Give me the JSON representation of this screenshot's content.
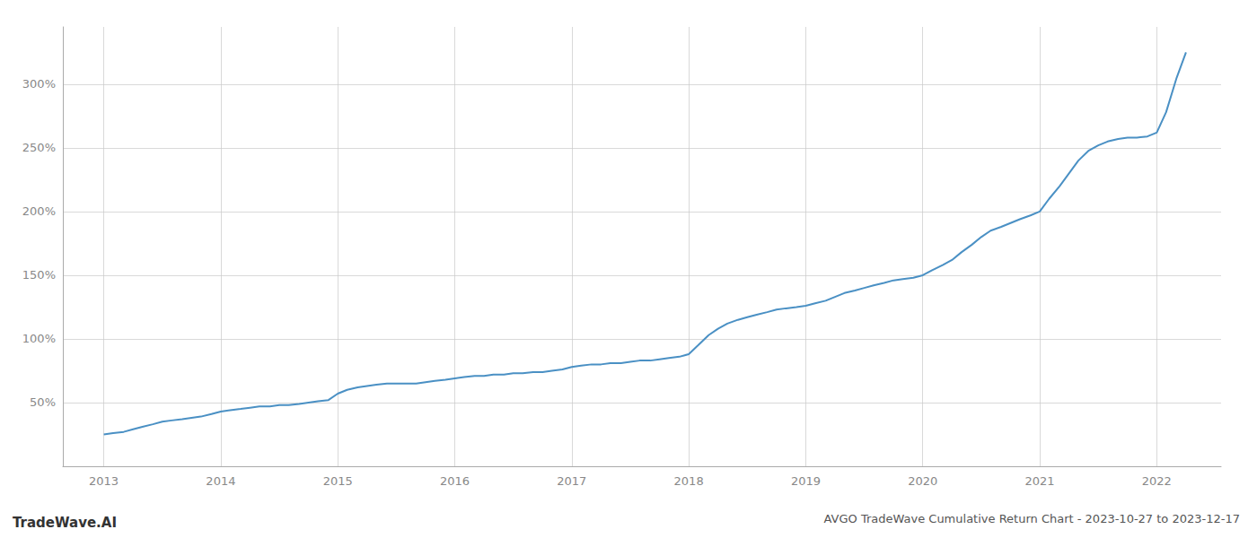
{
  "chart_data": {
    "type": "line",
    "title": "AVGO TradeWave Cumulative Return Chart - 2023-10-27 to 2023-12-17",
    "annotations": [
      "TradeWave.AI"
    ],
    "color": "#4a90c4",
    "grid": true,
    "x": [
      2013.0,
      2013.08,
      2013.17,
      2013.25,
      2013.33,
      2013.42,
      2013.5,
      2013.58,
      2013.67,
      2013.75,
      2013.83,
      2013.92,
      2014.0,
      2014.08,
      2014.17,
      2014.25,
      2014.33,
      2014.42,
      2014.5,
      2014.58,
      2014.67,
      2014.75,
      2014.83,
      2014.92,
      2015.0,
      2015.08,
      2015.17,
      2015.25,
      2015.33,
      2015.42,
      2015.5,
      2015.58,
      2015.67,
      2015.75,
      2015.83,
      2015.92,
      2016.0,
      2016.08,
      2016.17,
      2016.25,
      2016.33,
      2016.42,
      2016.5,
      2016.58,
      2016.67,
      2016.75,
      2016.83,
      2016.92,
      2017.0,
      2017.08,
      2017.17,
      2017.25,
      2017.33,
      2017.42,
      2017.5,
      2017.58,
      2017.67,
      2017.75,
      2017.83,
      2017.92,
      2018.0,
      2018.08,
      2018.17,
      2018.25,
      2018.33,
      2018.42,
      2018.5,
      2018.58,
      2018.67,
      2018.75,
      2018.83,
      2018.92,
      2019.0,
      2019.08,
      2019.17,
      2019.25,
      2019.33,
      2019.42,
      2019.5,
      2019.58,
      2019.67,
      2019.75,
      2019.83,
      2019.92,
      2020.0,
      2020.08,
      2020.17,
      2020.25,
      2020.33,
      2020.42,
      2020.5,
      2020.58,
      2020.67,
      2020.75,
      2020.83,
      2020.92,
      2021.0,
      2021.08,
      2021.17,
      2021.25,
      2021.33,
      2021.42,
      2021.5,
      2021.58,
      2021.67,
      2021.75,
      2021.83,
      2021.92,
      2022.0,
      2022.08,
      2022.17,
      2022.25
    ],
    "values": [
      25,
      26,
      27,
      29,
      31,
      33,
      35,
      36,
      37,
      38,
      39,
      41,
      43,
      44,
      45,
      46,
      47,
      47,
      48,
      48,
      49,
      50,
      51,
      52,
      57,
      60,
      62,
      63,
      64,
      65,
      65,
      65,
      65,
      66,
      67,
      68,
      69,
      70,
      71,
      71,
      72,
      72,
      73,
      73,
      74,
      74,
      75,
      76,
      78,
      79,
      80,
      80,
      81,
      81,
      82,
      83,
      83,
      84,
      85,
      86,
      88,
      95,
      103,
      108,
      112,
      115,
      117,
      119,
      121,
      123,
      124,
      125,
      126,
      128,
      130,
      133,
      136,
      138,
      140,
      142,
      144,
      146,
      147,
      148,
      150,
      154,
      158,
      162,
      168,
      174,
      180,
      185,
      188,
      191,
      194,
      197,
      200,
      210,
      220,
      230,
      240,
      248,
      252,
      255,
      257,
      258,
      258,
      259,
      262,
      278,
      305,
      325
    ],
    "xlim": [
      2012.65,
      2022.55
    ],
    "xticks": [
      2013,
      2014,
      2015,
      2016,
      2017,
      2018,
      2019,
      2020,
      2021,
      2022
    ],
    "ylim": [
      0,
      345
    ],
    "yticks": [
      {
        "value": 50,
        "label": "50%"
      },
      {
        "value": 100,
        "label": "100%"
      },
      {
        "value": 150,
        "label": "150%"
      },
      {
        "value": 200,
        "label": "200%"
      },
      {
        "value": 250,
        "label": "250%"
      },
      {
        "value": 300,
        "label": "300%"
      }
    ]
  }
}
